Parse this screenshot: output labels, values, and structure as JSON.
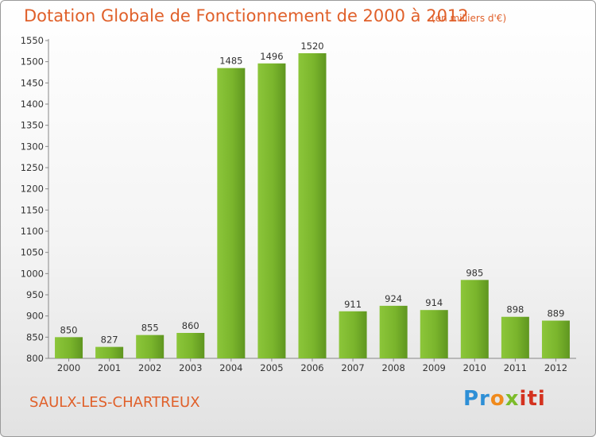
{
  "chart_data": {
    "type": "bar",
    "title": "Dotation Globale de Fonctionnement de 2000 à 2012",
    "subtitle": "(en milliers d'€)",
    "categories": [
      "2000",
      "2001",
      "2002",
      "2003",
      "2004",
      "2005",
      "2006",
      "2007",
      "2008",
      "2009",
      "2010",
      "2011",
      "2012"
    ],
    "values": [
      850,
      827,
      855,
      860,
      1485,
      1496,
      1520,
      911,
      924,
      914,
      985,
      898,
      889
    ],
    "ylim": [
      800,
      1550
    ],
    "yticks": [
      800,
      850,
      900,
      950,
      1000,
      1050,
      1100,
      1150,
      1200,
      1250,
      1300,
      1350,
      1400,
      1450,
      1500,
      1550
    ],
    "xlabel": "",
    "ylabel": "",
    "grid": false,
    "bar_color": "#7ab52c"
  },
  "location": "SAULX-LES-CHARTREUX",
  "logo": {
    "p1": "Pr",
    "p2": "o",
    "p3": "x",
    "p4": "iti"
  }
}
